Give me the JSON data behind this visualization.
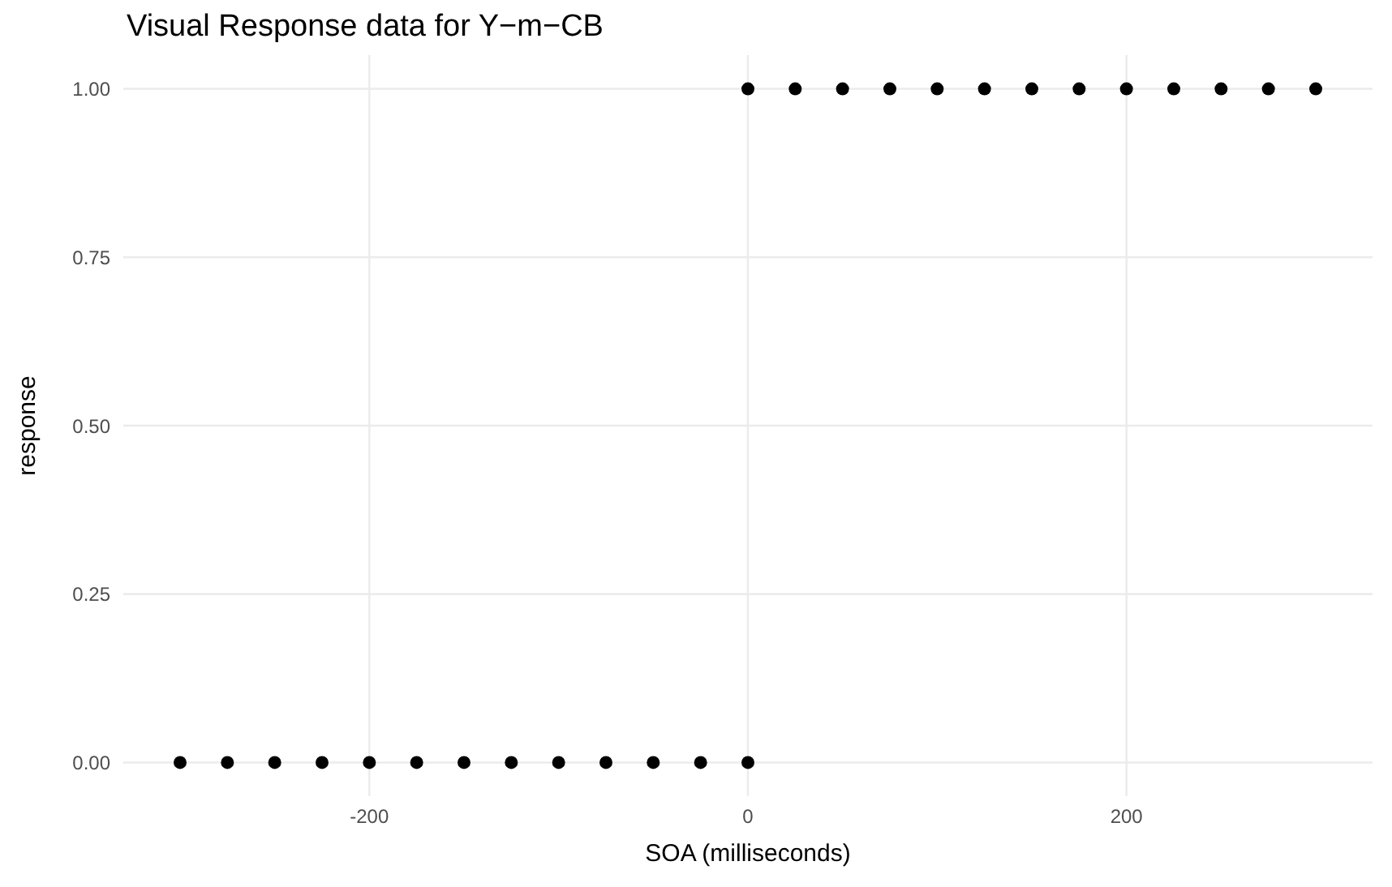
{
  "chart_data": {
    "type": "scatter",
    "title": "Visual Response data for Y−m−CB",
    "xlabel": "SOA (milliseconds)",
    "ylabel": "response",
    "x": [
      -300,
      -275,
      -250,
      -225,
      -200,
      -175,
      -150,
      -125,
      -100,
      -75,
      -50,
      -25,
      0,
      0,
      25,
      50,
      75,
      100,
      125,
      150,
      175,
      200,
      225,
      250,
      275,
      300
    ],
    "series": [
      {
        "color": "#000000",
        "values": [
          0,
          0,
          0,
          0,
          0,
          0,
          0,
          0,
          0,
          0,
          0,
          0,
          0,
          1,
          1,
          1,
          1,
          1,
          1,
          1,
          1,
          1,
          1,
          1,
          1,
          1
        ]
      }
    ],
    "xlim": [
      -330,
      330
    ],
    "xticks": [
      -200,
      0,
      200
    ],
    "ylim": [
      -0.05,
      1.05
    ],
    "yticks": [
      {
        "value": 0,
        "label": "0.00"
      },
      {
        "value": 0.25,
        "label": "0.25"
      },
      {
        "value": 0.5,
        "label": "0.50"
      },
      {
        "value": 0.75,
        "label": "0.75"
      },
      {
        "value": 1,
        "label": "1.00"
      }
    ],
    "grid": true,
    "marker": "circle"
  }
}
